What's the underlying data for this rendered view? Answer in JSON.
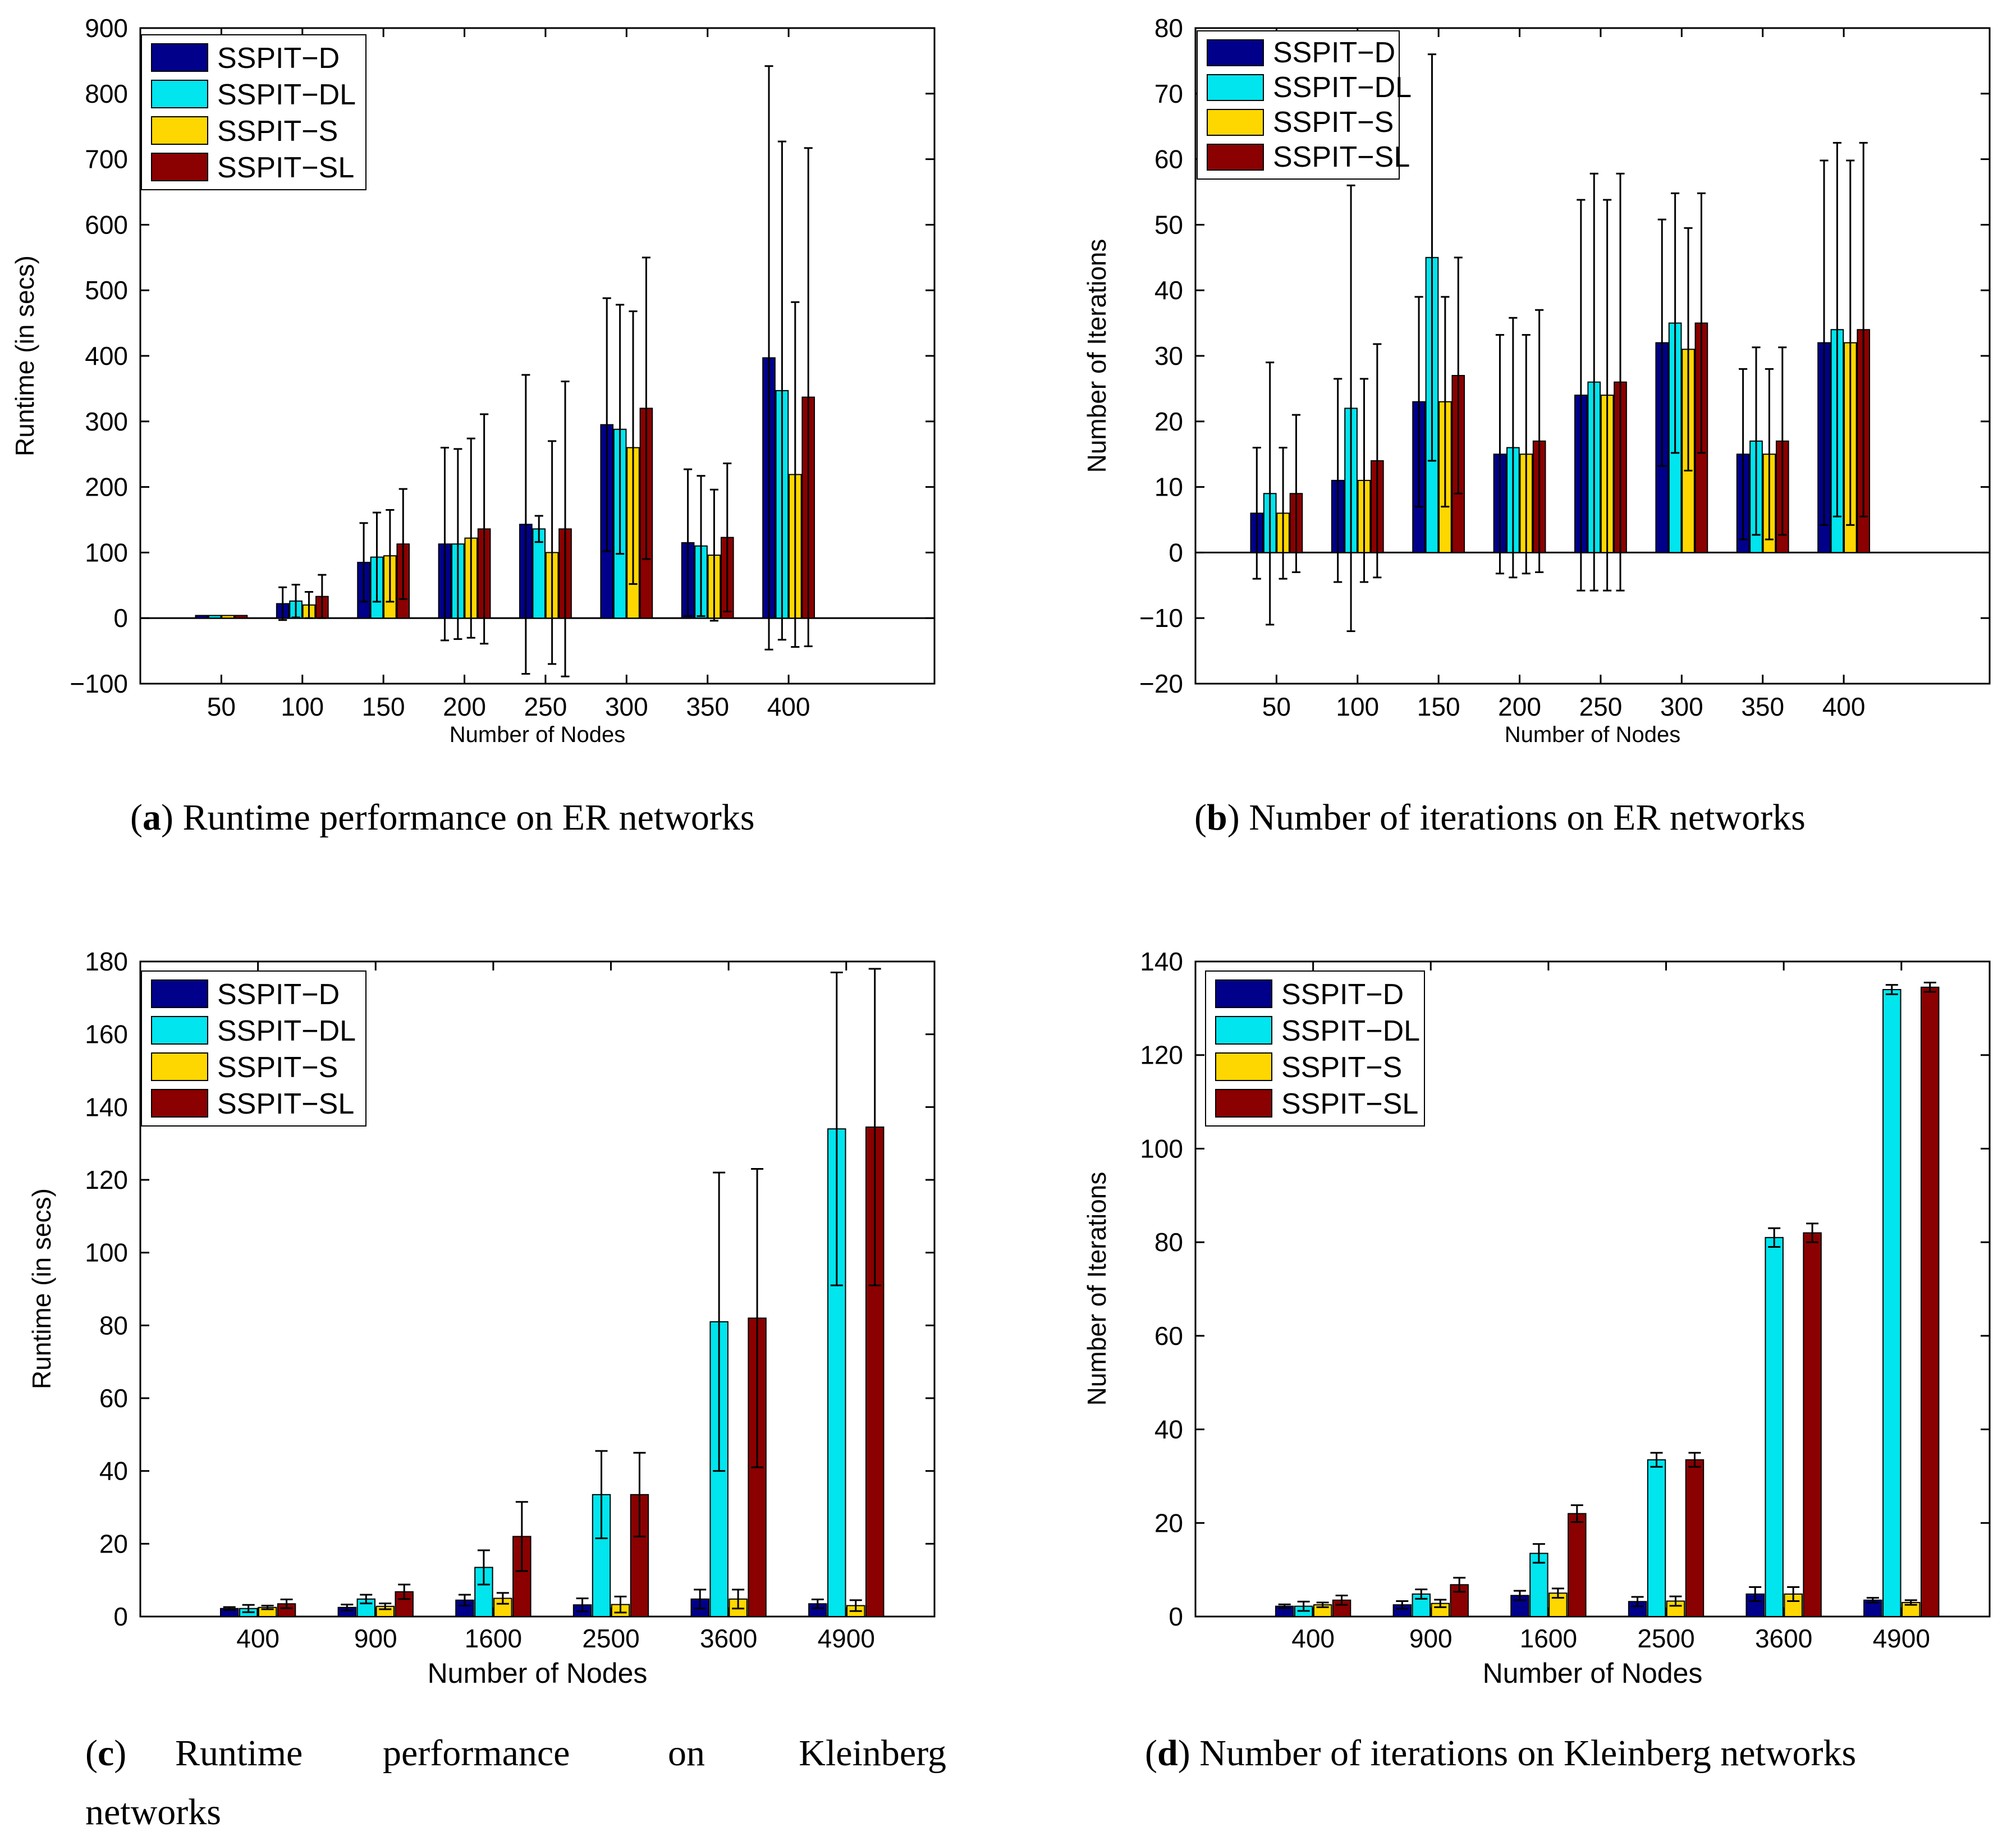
{
  "series_names": [
    "SSPIT−D",
    "SSPIT−DL",
    "SSPIT−S",
    "SSPIT−SL"
  ],
  "series_colors": [
    "#00008b",
    "#00e5ee",
    "#ffd700",
    "#8b0000"
  ],
  "captions": {
    "a": {
      "letter": "a",
      "text": "Runtime performance on ER networks"
    },
    "b": {
      "letter": "b",
      "text": "Number of iterations on ER networks"
    },
    "c": {
      "letter": "c",
      "line1": [
        "Runtime",
        "performance",
        "on",
        "Kleinberg"
      ],
      "line2": "networks"
    },
    "d": {
      "letter": "d",
      "text": "Number of iterations on Kleinberg networks"
    }
  },
  "chart_data": [
    {
      "id": "a",
      "type": "bar",
      "xlabel": "Number of Nodes",
      "ylabel": "Runtime (in secs)",
      "ylim": [
        -100,
        900
      ],
      "yticks": [
        -100,
        0,
        100,
        200,
        300,
        400,
        500,
        600,
        700,
        800,
        900
      ],
      "ytick_labels": [
        "−100",
        "0",
        "100",
        "200",
        "300",
        "400",
        "500",
        "600",
        "700",
        "800",
        "900"
      ],
      "categories": [
        "50",
        "100",
        "150",
        "200",
        "250",
        "300",
        "350",
        "400"
      ],
      "extra_slots": 1.8,
      "legend_position": "top-left",
      "series": [
        {
          "name": "SSPIT−D",
          "values": [
            4,
            22,
            85,
            113,
            143,
            295,
            115,
            397
          ],
          "err": [
            0,
            25,
            60,
            147,
            228,
            193,
            112,
            445
          ]
        },
        {
          "name": "SSPIT−DL",
          "values": [
            4,
            26,
            93,
            113,
            136,
            288,
            110,
            347
          ],
          "err": [
            0,
            25,
            68,
            145,
            20,
            190,
            107,
            380
          ]
        },
        {
          "name": "SSPIT−S",
          "values": [
            4,
            20,
            95,
            122,
            100,
            260,
            96,
            219
          ],
          "err": [
            0,
            20,
            70,
            152,
            170,
            208,
            100,
            263
          ]
        },
        {
          "name": "SSPIT−SL",
          "values": [
            4,
            33,
            113,
            136,
            136,
            320,
            123,
            337
          ],
          "err": [
            0,
            33,
            84,
            175,
            225,
            230,
            113,
            380
          ]
        }
      ]
    },
    {
      "id": "b",
      "type": "bar",
      "xlabel": "Number of Nodes",
      "ylabel": "Number of Iterations",
      "ylim": [
        -20,
        80
      ],
      "yticks": [
        -20,
        -10,
        0,
        10,
        20,
        30,
        40,
        50,
        60,
        70,
        80
      ],
      "ytick_labels": [
        "−20",
        "−10",
        "0",
        "10",
        "20",
        "30",
        "40",
        "50",
        "60",
        "70",
        "80"
      ],
      "categories": [
        "50",
        "100",
        "150",
        "200",
        "250",
        "300",
        "350",
        "400"
      ],
      "extra_slots": 1.8,
      "legend_position": "top-left",
      "series": [
        {
          "name": "SSPIT−D",
          "values": [
            6,
            11,
            23,
            15,
            24,
            32,
            15,
            32
          ],
          "err": [
            10,
            15.5,
            16,
            18.2,
            29.8,
            18.8,
            13,
            27.8
          ]
        },
        {
          "name": "SSPIT−DL",
          "values": [
            9,
            22,
            45,
            16,
            26,
            35,
            17,
            34
          ],
          "err": [
            20,
            34,
            31,
            19.8,
            31.8,
            19.8,
            14.3,
            28.5
          ]
        },
        {
          "name": "SSPIT−S",
          "values": [
            6,
            11,
            23,
            15,
            24,
            31,
            15,
            32
          ],
          "err": [
            10,
            15.5,
            16,
            18.2,
            29.8,
            18.5,
            13,
            27.8
          ]
        },
        {
          "name": "SSPIT−SL",
          "values": [
            9,
            14,
            27,
            17,
            26,
            35,
            17,
            34
          ],
          "err": [
            12,
            17.8,
            18,
            20,
            31.8,
            19.8,
            14.3,
            28.5
          ]
        }
      ]
    },
    {
      "id": "c",
      "type": "bar",
      "xlabel": "Number of Nodes",
      "ylabel": "Runtime (in secs)",
      "ylim": [
        0,
        180
      ],
      "yticks": [
        0,
        20,
        40,
        60,
        80,
        100,
        120,
        140,
        160,
        180
      ],
      "ytick_labels": [
        "0",
        "20",
        "40",
        "60",
        "80",
        "100",
        "120",
        "140",
        "160",
        "180"
      ],
      "categories": [
        "400",
        "900",
        "1600",
        "2500",
        "3600",
        "4900"
      ],
      "extra_slots": 0.75,
      "legend_position": "top-left",
      "series": [
        {
          "name": "SSPIT−D",
          "values": [
            2.2,
            2.5,
            4.5,
            3.2,
            4.8,
            3.5
          ],
          "err": [
            0.4,
            0.8,
            1.5,
            1.8,
            2.6,
            1.2
          ]
        },
        {
          "name": "SSPIT−DL",
          "values": [
            2.2,
            4.8,
            13.5,
            33.5,
            81,
            134
          ],
          "err": [
            1.0,
            1.2,
            4.7,
            12,
            41,
            43
          ]
        },
        {
          "name": "SSPIT−S",
          "values": [
            2.5,
            2.8,
            5.0,
            3.3,
            4.8,
            3.0
          ],
          "err": [
            0.5,
            0.8,
            1.5,
            2.2,
            2.6,
            1.5
          ]
        },
        {
          "name": "SSPIT−SL",
          "values": [
            3.5,
            6.8,
            22,
            33.5,
            82,
            134.5
          ],
          "err": [
            1.2,
            2.0,
            9.5,
            11.5,
            41,
            43.5
          ]
        }
      ]
    },
    {
      "id": "d",
      "type": "bar",
      "xlabel": "Number of Nodes",
      "ylabel": "Number of Iterations",
      "ylim": [
        0,
        140
      ],
      "yticks": [
        0,
        20,
        40,
        60,
        80,
        100,
        120,
        140
      ],
      "ytick_labels": [
        "0",
        "20",
        "40",
        "60",
        "80",
        "100",
        "120",
        "140"
      ],
      "categories": [
        "400",
        "900",
        "1600",
        "2500",
        "3600",
        "4900"
      ],
      "extra_slots": 0.75,
      "legend_position": "top-left",
      "series": [
        {
          "name": "SSPIT−D",
          "values": [
            2.2,
            2.5,
            4.5,
            3.2,
            4.8,
            3.5
          ],
          "err": [
            0.4,
            0.8,
            1.0,
            1.0,
            1.5,
            0.5
          ]
        },
        {
          "name": "SSPIT−DL",
          "values": [
            2.2,
            4.8,
            13.5,
            33.5,
            81,
            134
          ],
          "err": [
            1.0,
            1.0,
            2.0,
            1.5,
            2.0,
            1.0
          ]
        },
        {
          "name": "SSPIT−S",
          "values": [
            2.5,
            2.8,
            5.0,
            3.3,
            4.8,
            3.0
          ],
          "err": [
            0.5,
            0.8,
            1.0,
            1.0,
            1.5,
            0.5
          ]
        },
        {
          "name": "SSPIT−SL",
          "values": [
            3.5,
            6.8,
            22,
            33.5,
            82,
            134.5
          ],
          "err": [
            1.0,
            1.5,
            1.8,
            1.5,
            2.0,
            1.0
          ]
        }
      ]
    }
  ]
}
